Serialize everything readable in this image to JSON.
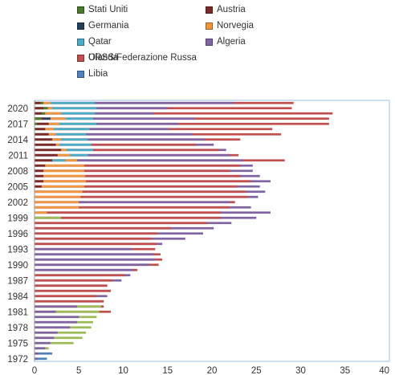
{
  "chart_data": {
    "type": "bar",
    "orientation": "horizontal",
    "stacked": false,
    "years": [
      1972,
      1973,
      1974,
      1975,
      1976,
      1977,
      1978,
      1979,
      1980,
      1981,
      1982,
      1983,
      1984,
      1985,
      1986,
      1987,
      1988,
      1989,
      1990,
      1991,
      1992,
      1993,
      1994,
      1995,
      1996,
      1997,
      1998,
      1999,
      2000,
      2001,
      2002,
      2003,
      2004,
      2005,
      2006,
      2007,
      2008,
      2009,
      2010,
      2011,
      2012,
      2013,
      2014,
      2015,
      2016,
      2017,
      2018,
      2019,
      2020,
      2021
    ],
    "y_tick_labels": [
      "1972",
      "1975",
      "1978",
      "1981",
      "1984",
      "1987",
      "1990",
      "1993",
      "1996",
      "1999",
      "2002",
      "2005",
      "2008",
      "2011",
      "2014",
      "2017",
      "2020"
    ],
    "x_tick_labels": [
      "0",
      "5",
      "10",
      "15",
      "20",
      "25",
      "30",
      "35",
      "40"
    ],
    "xlim": [
      0,
      40
    ],
    "grid": false,
    "legend_position": "top",
    "series": [
      {
        "name": "Stati Uniti",
        "color": "#4a7a2c",
        "values": [
          0,
          0,
          0,
          0,
          0,
          0,
          0,
          0,
          0,
          0,
          0,
          0,
          0,
          0,
          0,
          0,
          0,
          0,
          0,
          0,
          0,
          0,
          0,
          0,
          0,
          0,
          0,
          0,
          0,
          0,
          0,
          0,
          0,
          0,
          0,
          0,
          0,
          0,
          0,
          0,
          0,
          0,
          0,
          0,
          0.1,
          0.3,
          0.8,
          1.2,
          1.5,
          1.0
        ]
      },
      {
        "name": "Austria",
        "color": "#7b2a2a",
        "values": [
          0,
          0,
          0,
          0,
          0,
          0,
          0,
          0,
          0,
          0,
          0,
          0,
          0,
          0,
          0,
          0,
          0,
          0,
          0,
          0,
          0,
          0,
          0,
          0,
          0,
          0,
          0,
          0,
          0,
          0,
          0,
          0,
          0,
          0.8,
          1.0,
          1.0,
          1.0,
          1.2,
          2.0,
          2.6,
          3.0,
          2.4,
          2.0,
          1.6,
          1.2,
          1.6,
          1.0,
          0.8,
          1.0,
          0.7
        ]
      },
      {
        "name": "Germania",
        "color": "#24405f",
        "values": [
          0,
          0,
          0,
          0,
          0,
          0,
          0,
          0,
          0,
          0,
          0,
          0,
          0,
          0,
          0,
          0,
          0,
          0,
          0,
          0,
          0,
          0,
          0,
          0,
          0,
          0,
          0,
          0,
          0,
          0,
          0,
          0,
          0,
          0,
          0,
          0,
          0,
          0,
          0,
          0,
          0,
          0,
          0,
          0,
          0,
          0,
          1.8,
          0,
          0,
          0
        ]
      },
      {
        "name": "Norvegia",
        "color": "#f0963e",
        "values": [
          0,
          0,
          0,
          0,
          0,
          0,
          0,
          0,
          0,
          0,
          0,
          0,
          0,
          0,
          0,
          0,
          0,
          0,
          0,
          0,
          0,
          0,
          0,
          0,
          0,
          0,
          0,
          0,
          1.4,
          5.0,
          5.0,
          5.2,
          5.4,
          5.6,
          5.8,
          5.7,
          5.6,
          5.6,
          4.8,
          4.0,
          3.6,
          2.8,
          3.0,
          2.4,
          2.2,
          2.8,
          3.5,
          3.0,
          2.0,
          1.8
        ]
      },
      {
        "name": "Qatar",
        "color": "#4bacc6",
        "values": [
          0,
          0,
          0,
          0,
          0,
          0,
          0,
          0,
          0,
          0,
          0,
          0,
          0,
          0,
          0,
          0,
          0,
          0,
          0,
          0,
          0,
          0,
          0,
          0,
          0,
          0,
          0,
          0,
          0,
          0,
          0,
          0,
          0,
          0,
          0,
          0,
          0,
          0,
          3.5,
          6.0,
          6.6,
          6.4,
          6.0,
          5.8,
          6.2,
          7.0,
          6.6,
          6.8,
          7.0,
          6.8
        ]
      },
      {
        "name": "Algeria",
        "color": "#8064a2",
        "values": [
          0.3,
          0.5,
          1.2,
          1.8,
          2.2,
          2.6,
          4.0,
          4.8,
          5.0,
          2.4,
          4.8,
          7.8,
          8.2,
          8.6,
          8.2,
          9.8,
          10.8,
          11.2,
          13.0,
          13.6,
          13.4,
          11.0,
          14.4,
          17.0,
          19.0,
          20.2,
          22.2,
          25.0,
          26.6,
          24.4,
          22.0,
          25.2,
          26.0,
          25.4,
          26.6,
          25.4,
          24.6,
          24.6,
          23.5,
          22.0,
          21.6,
          20.2,
          19.2,
          17.8,
          15.2,
          16.2,
          18.0,
          13.4,
          15.0,
          22.4
        ]
      },
      {
        "name": "Olanda",
        "color": "#9bbb59",
        "values": [
          0,
          0,
          1.6,
          4.4,
          5.4,
          5.8,
          6.4,
          6.6,
          7.0,
          7.3,
          7.5,
          0,
          0,
          0,
          0,
          0,
          0,
          0,
          0,
          0,
          0,
          0,
          0,
          0,
          0,
          0,
          0,
          3.0,
          0,
          0,
          0,
          0,
          0,
          0,
          0,
          0,
          0,
          0,
          0,
          0,
          0,
          0,
          0,
          0,
          0,
          0,
          0,
          0,
          0,
          0
        ]
      },
      {
        "name": "URSS/Federazione Russa",
        "color": "#c0504d",
        "values": [
          0,
          0,
          0,
          0,
          0,
          0,
          0,
          0,
          0,
          8.6,
          7.8,
          7.8,
          7.0,
          8.6,
          8.2,
          8.8,
          10.2,
          11.6,
          14.0,
          14.4,
          14.2,
          13.6,
          13.8,
          13.2,
          13.8,
          15.4,
          19.4,
          21.0,
          21.0,
          22.0,
          22.6,
          24.0,
          23.8,
          22.8,
          24.4,
          23.2,
          22.0,
          23.2,
          28.2,
          23.0,
          20.8,
          18.2,
          23.2,
          27.8,
          26.8,
          33.2,
          33.2,
          33.6,
          29.0,
          29.2
        ]
      },
      {
        "name": "Libia",
        "color": "#4f81bd",
        "values": [
          1.4,
          2.0,
          0,
          0,
          0,
          0,
          0,
          0,
          0,
          0,
          0,
          0,
          0,
          0,
          0,
          0,
          0,
          0,
          0,
          0,
          0,
          0,
          0,
          0,
          0,
          0,
          0,
          0,
          0,
          0,
          0,
          0,
          0,
          0,
          0,
          0,
          0,
          0,
          0,
          0,
          0,
          0,
          0,
          0,
          0,
          0,
          0,
          0,
          0,
          0
        ]
      }
    ]
  },
  "legend": {
    "items": [
      {
        "label": "Stati Uniti",
        "color": "#4a7a2c"
      },
      {
        "label": "Austria",
        "color": "#7b2a2a"
      },
      {
        "label": "Germania",
        "color": "#24405f"
      },
      {
        "label": "Norvegia",
        "color": "#f0963e"
      },
      {
        "label": "Qatar",
        "color": "#4bacc6"
      },
      {
        "label": "Algeria",
        "color": "#8064a2"
      },
      {
        "label": "Olanda",
        "color": "#9bbb59"
      },
      {
        "label": "URSS/Federazione Russa",
        "color": "#c0504d"
      },
      {
        "label": "Libia",
        "color": "#4f81bd"
      }
    ]
  },
  "colors": {
    "plot_border": "#9dc3e6",
    "axis": "#999999",
    "text": "#333333"
  }
}
